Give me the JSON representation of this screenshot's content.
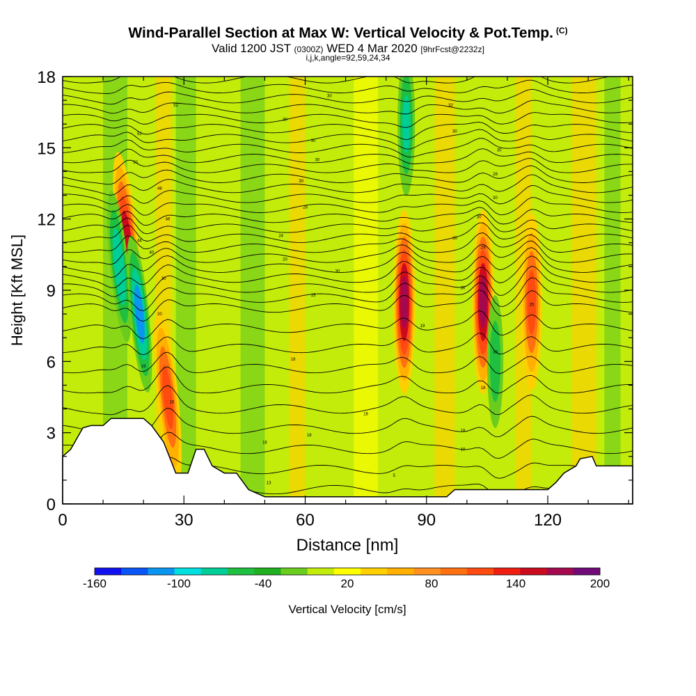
{
  "title": {
    "main": "Wind-Parallel Section at Max W: Vertical Velocity & Pot.Temp.",
    "copyright": "(C)",
    "valid_prefix": "Valid 1200 JST",
    "valid_utc": "(0300Z)",
    "valid_date": "WED 4 Mar 2020",
    "forecast": "[9hrFcst@2232z]",
    "indices": "i,j,k,angle=92,59,24,34"
  },
  "chart_data": {
    "type": "heatmap",
    "xlabel": "Distance [nm]",
    "ylabel": "Height [Kft MSL]",
    "xlim": [
      0,
      141
    ],
    "ylim": [
      0,
      18
    ],
    "x_ticks": [
      0,
      30,
      60,
      90,
      120
    ],
    "y_ticks": [
      0,
      3,
      6,
      9,
      12,
      15,
      18
    ],
    "background_value": 8,
    "updrafts": [
      {
        "x": 16,
        "y": 11,
        "value": 160
      },
      {
        "x": 26,
        "y": 4.5,
        "value": 120
      },
      {
        "x": 84.5,
        "y": 8.5,
        "value": 180
      },
      {
        "x": 104,
        "y": 8.5,
        "value": 180
      },
      {
        "x": 116,
        "y": 8.5,
        "value": 120
      }
    ],
    "downdrafts": [
      {
        "x": 14,
        "y": 10,
        "value": -120
      },
      {
        "x": 19,
        "y": 8,
        "value": -140
      },
      {
        "x": 85,
        "y": 16,
        "value": -100
      },
      {
        "x": 107,
        "y": 6,
        "value": -80
      }
    ],
    "terrain_height": [
      [
        0,
        2.0
      ],
      [
        2,
        2.3
      ],
      [
        3,
        2.6
      ],
      [
        4,
        2.9
      ],
      [
        5,
        3.2
      ],
      [
        7,
        3.3
      ],
      [
        10,
        3.3
      ],
      [
        12,
        3.6
      ],
      [
        20,
        3.6
      ],
      [
        22,
        3.3
      ],
      [
        25,
        2.6
      ],
      [
        28,
        1.3
      ],
      [
        31,
        1.3
      ],
      [
        33,
        2.3
      ],
      [
        35,
        2.3
      ],
      [
        37,
        1.6
      ],
      [
        40,
        1.3
      ],
      [
        43,
        1.3
      ],
      [
        46,
        0.6
      ],
      [
        50,
        0.3
      ],
      [
        55,
        0.3
      ],
      [
        60,
        0.3
      ],
      [
        80,
        0.3
      ],
      [
        95,
        0.3
      ],
      [
        97,
        0.6
      ],
      [
        120,
        0.6
      ],
      [
        122,
        0.9
      ],
      [
        124,
        1.3
      ],
      [
        127,
        1.6
      ],
      [
        128,
        1.9
      ],
      [
        131,
        2.0
      ],
      [
        132,
        1.6
      ],
      [
        141,
        1.6
      ]
    ],
    "contour_labels": [
      {
        "x": 66,
        "y": 17.2,
        "text": "30"
      },
      {
        "x": 28,
        "y": 16.8,
        "text": "52"
      },
      {
        "x": 96,
        "y": 16.8,
        "text": "32"
      },
      {
        "x": 55,
        "y": 16.2,
        "text": "30"
      },
      {
        "x": 97,
        "y": 15.7,
        "text": "30"
      },
      {
        "x": 62,
        "y": 15.3,
        "text": "30"
      },
      {
        "x": 19,
        "y": 15.6,
        "text": "52"
      },
      {
        "x": 108,
        "y": 14.9,
        "text": "30"
      },
      {
        "x": 63,
        "y": 14.5,
        "text": "30"
      },
      {
        "x": 18,
        "y": 14.4,
        "text": "50"
      },
      {
        "x": 107,
        "y": 13.9,
        "text": "28"
      },
      {
        "x": 59,
        "y": 13.6,
        "text": "30"
      },
      {
        "x": 24,
        "y": 13.3,
        "text": "48"
      },
      {
        "x": 107,
        "y": 12.9,
        "text": "30"
      },
      {
        "x": 60,
        "y": 12.5,
        "text": "28"
      },
      {
        "x": 103,
        "y": 12.1,
        "text": "30"
      },
      {
        "x": 26,
        "y": 12.0,
        "text": "46"
      },
      {
        "x": 54,
        "y": 11.3,
        "text": "24"
      },
      {
        "x": 97,
        "y": 11.2,
        "text": "30"
      },
      {
        "x": 19,
        "y": 11.1,
        "text": "44"
      },
      {
        "x": 22,
        "y": 10.6,
        "text": "40"
      },
      {
        "x": 104,
        "y": 10.8,
        "text": "29"
      },
      {
        "x": 55,
        "y": 10.3,
        "text": "20"
      },
      {
        "x": 68,
        "y": 9.8,
        "text": "30"
      },
      {
        "x": 25,
        "y": 9.5,
        "text": "30"
      },
      {
        "x": 99,
        "y": 9.1,
        "text": "30"
      },
      {
        "x": 62,
        "y": 8.8,
        "text": "15"
      },
      {
        "x": 116,
        "y": 8.4,
        "text": "25"
      },
      {
        "x": 24,
        "y": 8.0,
        "text": "20"
      },
      {
        "x": 89,
        "y": 7.5,
        "text": "19"
      },
      {
        "x": 57,
        "y": 6.1,
        "text": "18"
      },
      {
        "x": 107,
        "y": 6.4,
        "text": "18"
      },
      {
        "x": 20,
        "y": 5.8,
        "text": "19"
      },
      {
        "x": 104,
        "y": 4.9,
        "text": "18"
      },
      {
        "x": 27,
        "y": 4.3,
        "text": "16"
      },
      {
        "x": 75,
        "y": 3.8,
        "text": "16"
      },
      {
        "x": 99,
        "y": 3.1,
        "text": "18"
      },
      {
        "x": 61,
        "y": 2.9,
        "text": "18"
      },
      {
        "x": 99,
        "y": 2.3,
        "text": "10"
      },
      {
        "x": 50,
        "y": 2.6,
        "text": "16"
      },
      {
        "x": 51,
        "y": 0.9,
        "text": "13"
      },
      {
        "x": 82,
        "y": 1.2,
        "text": "5"
      }
    ]
  },
  "colorbar": {
    "label": "Vertical Velocity [cm/s]",
    "tick_labels": [
      "-160",
      "-100",
      "-40",
      "20",
      "80",
      "140",
      "200"
    ],
    "colors": [
      "#1010f0",
      "#0a55f5",
      "#0a95f0",
      "#00dfdf",
      "#00ce96",
      "#1fc040",
      "#20b020",
      "#6acd1e",
      "#c4ec0a",
      "#ffff00",
      "#ffd000",
      "#ffb000",
      "#ff9020",
      "#ff7010",
      "#ff4a10",
      "#f01e10",
      "#cc0a1e",
      "#a4084e",
      "#700a78"
    ]
  }
}
